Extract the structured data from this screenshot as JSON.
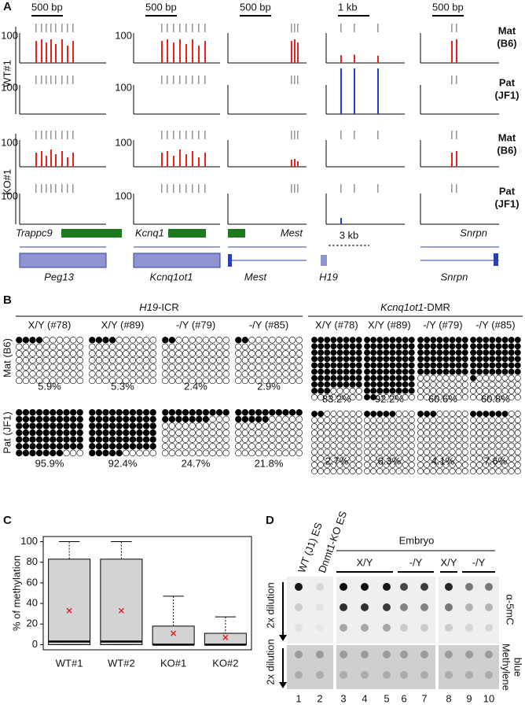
{
  "panel_a": {
    "label": "A",
    "scale_bars": [
      "500 bp",
      "500 bp",
      "500 bp",
      "1 kb",
      "500 bp"
    ],
    "track_max": 100,
    "samples": [
      "WT#1",
      "KO#1"
    ],
    "alleles": [
      {
        "name": "Mat",
        "strain": "(B6)",
        "color": "#e8211d"
      },
      {
        "name": "Pat",
        "strain": "(JF1)",
        "color": "#1f3fd0"
      }
    ],
    "genes_top": [
      "Trappc9",
      "Kcnq1",
      "Mest",
      "Snrpn"
    ],
    "genes_bottom": [
      "Peg13",
      "Kcnq1ot1",
      "Mest",
      "H19",
      "Snrpn"
    ],
    "h19_scale": "3 kb"
  },
  "panel_b": {
    "label": "B",
    "samples": [
      "X/Y (#78)",
      "X/Y (#89)",
      "-/Y (#79)",
      "-/Y (#85)"
    ],
    "rows": [
      "Mat (B6)",
      "Pat (JF1)"
    ],
    "groups": [
      {
        "title_gene": "H19",
        "title_suffix": "-ICR",
        "values": [
          [
            {
              "value": 5.9,
              "label": "5.9%"
            },
            {
              "value": 5.3,
              "label": "5.3%"
            },
            {
              "value": 2.4,
              "label": "2.4%"
            },
            {
              "value": 2.9,
              "label": "2.9%"
            }
          ],
          [
            {
              "value": 95.9,
              "label": "95.9%"
            },
            {
              "value": 92.4,
              "label": "92.4%"
            },
            {
              "value": 24.7,
              "label": "24.7%"
            },
            {
              "value": 21.8,
              "label": "21.8%"
            }
          ]
        ]
      },
      {
        "title_gene": "Kcnq1ot1",
        "title_suffix": "-DMR",
        "values": [
          [
            {
              "value": 83.2,
              "label": "83.2%"
            },
            {
              "value": 92.2,
              "label": "92.2%"
            },
            {
              "value": 60.6,
              "label": "60.6%"
            },
            {
              "value": 60.8,
              "label": "60.8%"
            }
          ],
          [
            {
              "value": 2.7,
              "label": "2.7%"
            },
            {
              "value": 6.3,
              "label": "6.3%"
            },
            {
              "value": 4.1,
              "label": "4.1%"
            },
            {
              "value": 7.6,
              "label": "7.6%"
            }
          ]
        ]
      }
    ]
  },
  "chart_data": {
    "type": "box",
    "label": "C",
    "y_label": "% of methylation",
    "categories": [
      "WT#1",
      "WT#2",
      "KO#1",
      "KO#2"
    ],
    "boxes": [
      {
        "min": 0,
        "q1": 0,
        "median": 3,
        "q3": 83,
        "max": 100,
        "mean": 33
      },
      {
        "min": 0,
        "q1": 0,
        "median": 3,
        "q3": 83,
        "max": 100,
        "mean": 33
      },
      {
        "min": 0,
        "q1": 0,
        "median": 0,
        "q3": 18,
        "max": 47,
        "mean": 11
      },
      {
        "min": 0,
        "q1": 0,
        "median": 0,
        "q3": 11,
        "max": 27,
        "mean": 7
      }
    ],
    "ylim": [
      -5,
      105
    ],
    "yticks": [
      0,
      20,
      40,
      60,
      80,
      100
    ],
    "box_color": "#d3d3d3",
    "mean_color": "#e8211d"
  },
  "panel_d": {
    "label": "D",
    "controls": [
      "WT (J1) ES",
      "Dnmt1-KO ES"
    ],
    "embryo": "Embryo",
    "genotypes": [
      "X/Y",
      "-/Y",
      "X/Y",
      "-/Y"
    ],
    "stain_top": "α-5mC",
    "stain_bottom": [
      "Methylene",
      "blue"
    ],
    "dilution": "2x dilution",
    "lane_numbers": [
      1,
      2,
      3,
      4,
      5,
      6,
      7,
      8,
      9,
      10
    ]
  }
}
